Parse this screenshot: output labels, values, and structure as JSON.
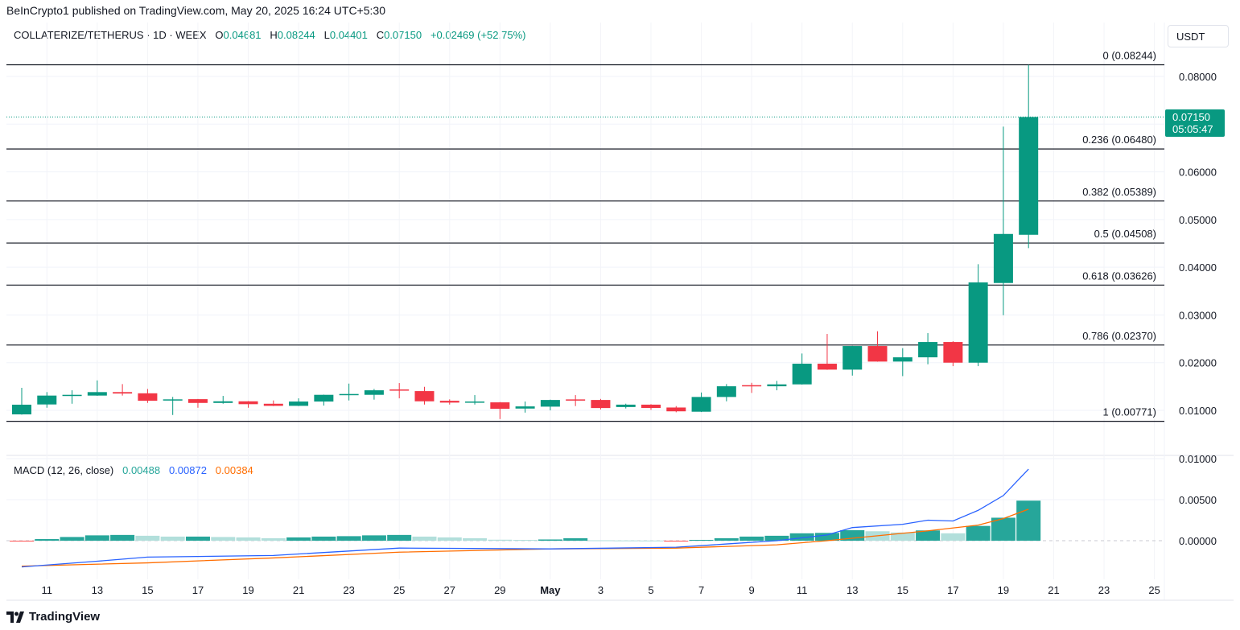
{
  "publisher": "BeInCrypto1 published on TradingView.com, May 20, 2025 16:24 UTC+5:30",
  "symbol": {
    "title": "COLLATERIZE/TETHERUS · 1D · WEEX",
    "open_label": "O",
    "open": "0.04681",
    "high_label": "H",
    "high": "0.08244",
    "low_label": "L",
    "low": "0.04401",
    "close_label": "C",
    "close": "0.07150",
    "change": "+0.02469 (+52.75%)"
  },
  "currency": "USDT",
  "last_price": {
    "price": "0.07150",
    "countdown": "05:05:47"
  },
  "macd_legend": {
    "title": "MACD (12, 26, close)",
    "histogram": "0.00488",
    "macd": "0.00872",
    "signal": "0.00384"
  },
  "footer": {
    "brand": "TradingView"
  },
  "colors": {
    "up": "#089981",
    "down": "#F23645",
    "macd": "#2962FF",
    "signal": "#FF6D00",
    "hist_up_strong": "#26A69A",
    "hist_up_weak": "#B2DFDB",
    "hist_down": "#FF5252"
  },
  "chart_data": [
    {
      "type": "candlestick",
      "ylim": [
        0.0,
        0.0855
      ],
      "grid": true,
      "price_ticks": [
        "0.08000",
        "0.06000",
        "0.05000",
        "0.04000",
        "0.03000",
        "0.02000",
        "0.01000"
      ],
      "x_ticks": [
        "11",
        "13",
        "15",
        "17",
        "19",
        "21",
        "23",
        "25",
        "27",
        "29",
        "May",
        "3",
        "5",
        "7",
        "9",
        "11",
        "13",
        "15",
        "17",
        "19",
        "21",
        "23",
        "25"
      ],
      "fibonacci": [
        {
          "label": "0 (0.08244)",
          "value": 0.08244
        },
        {
          "label": "0.236 (0.06480)",
          "value": 0.0648
        },
        {
          "label": "0.382 (0.05389)",
          "value": 0.05389
        },
        {
          "label": "0.5 (0.04508)",
          "value": 0.04508
        },
        {
          "label": "0.618 (0.03626)",
          "value": 0.03626
        },
        {
          "label": "0.786 (0.02370)",
          "value": 0.0237
        },
        {
          "label": "1 (0.00771)",
          "value": 0.00771
        }
      ],
      "candles": [
        {
          "date": "2025-04-10",
          "o": 0.00916,
          "h": 0.01473,
          "l": 0.0091,
          "c": 0.01119
        },
        {
          "date": "2025-04-11",
          "o": 0.01124,
          "h": 0.01383,
          "l": 0.01055,
          "c": 0.0131
        },
        {
          "date": "2025-04-12",
          "o": 0.0131,
          "h": 0.01421,
          "l": 0.01139,
          "c": 0.01326
        },
        {
          "date": "2025-04-13",
          "o": 0.0131,
          "h": 0.01628,
          "l": 0.01305,
          "c": 0.01383
        },
        {
          "date": "2025-04-14",
          "o": 0.01383,
          "h": 0.01551,
          "l": 0.0131,
          "c": 0.01353
        },
        {
          "date": "2025-04-15",
          "o": 0.01358,
          "h": 0.01449,
          "l": 0.01156,
          "c": 0.01201
        },
        {
          "date": "2025-04-16",
          "o": 0.01208,
          "h": 0.01282,
          "l": 0.00903,
          "c": 0.01231
        },
        {
          "date": "2025-04-17",
          "o": 0.01235,
          "h": 0.0124,
          "l": 0.01055,
          "c": 0.01156
        },
        {
          "date": "2025-04-18",
          "o": 0.01156,
          "h": 0.01303,
          "l": 0.01139,
          "c": 0.0119
        },
        {
          "date": "2025-04-19",
          "o": 0.0119,
          "h": 0.01195,
          "l": 0.01055,
          "c": 0.0113
        },
        {
          "date": "2025-04-20",
          "o": 0.01139,
          "h": 0.01208,
          "l": 0.0109,
          "c": 0.01095
        },
        {
          "date": "2025-04-21",
          "o": 0.01095,
          "h": 0.01252,
          "l": 0.0109,
          "c": 0.01185
        },
        {
          "date": "2025-04-22",
          "o": 0.01185,
          "h": 0.0133,
          "l": 0.011,
          "c": 0.01326
        },
        {
          "date": "2025-04-23",
          "o": 0.01326,
          "h": 0.01561,
          "l": 0.01208,
          "c": 0.01343
        },
        {
          "date": "2025-04-24",
          "o": 0.01326,
          "h": 0.01449,
          "l": 0.01225,
          "c": 0.01421
        },
        {
          "date": "2025-04-25",
          "o": 0.01438,
          "h": 0.01573,
          "l": 0.01252,
          "c": 0.01418
        },
        {
          "date": "2025-04-26",
          "o": 0.01404,
          "h": 0.01494,
          "l": 0.01122,
          "c": 0.0119
        },
        {
          "date": "2025-04-27",
          "o": 0.01201,
          "h": 0.01231,
          "l": 0.01122,
          "c": 0.01163
        },
        {
          "date": "2025-04-28",
          "o": 0.01163,
          "h": 0.0132,
          "l": 0.01122,
          "c": 0.01185
        },
        {
          "date": "2025-04-29",
          "o": 0.01168,
          "h": 0.01175,
          "l": 0.00818,
          "c": 0.01033
        },
        {
          "date": "2025-04-30",
          "o": 0.01038,
          "h": 0.01185,
          "l": 0.00953,
          "c": 0.01083
        },
        {
          "date": "2025-05-01",
          "o": 0.01078,
          "h": 0.01225,
          "l": 0.01,
          "c": 0.01218
        },
        {
          "date": "2025-05-02",
          "o": 0.0123,
          "h": 0.0132,
          "l": 0.0109,
          "c": 0.0121
        },
        {
          "date": "2025-05-03",
          "o": 0.01218,
          "h": 0.0124,
          "l": 0.0102,
          "c": 0.01049
        },
        {
          "date": "2025-05-04",
          "o": 0.0107,
          "h": 0.0114,
          "l": 0.0104,
          "c": 0.0112
        },
        {
          "date": "2025-05-05",
          "o": 0.0112,
          "h": 0.0113,
          "l": 0.0101,
          "c": 0.0105
        },
        {
          "date": "2025-05-06",
          "o": 0.0106,
          "h": 0.0109,
          "l": 0.0096,
          "c": 0.0098
        },
        {
          "date": "2025-05-07",
          "o": 0.00972,
          "h": 0.01375,
          "l": 0.00965,
          "c": 0.01281
        },
        {
          "date": "2025-05-08",
          "o": 0.01281,
          "h": 0.01551,
          "l": 0.0119,
          "c": 0.01505
        },
        {
          "date": "2025-05-09",
          "o": 0.01528,
          "h": 0.01578,
          "l": 0.01366,
          "c": 0.01515
        },
        {
          "date": "2025-05-10",
          "o": 0.01505,
          "h": 0.01618,
          "l": 0.01421,
          "c": 0.01545
        },
        {
          "date": "2025-05-11",
          "o": 0.01545,
          "h": 0.02192,
          "l": 0.0154,
          "c": 0.01978
        },
        {
          "date": "2025-05-12",
          "o": 0.01978,
          "h": 0.02602,
          "l": 0.0185,
          "c": 0.01854
        },
        {
          "date": "2025-05-13",
          "o": 0.01854,
          "h": 0.02352,
          "l": 0.01729,
          "c": 0.02349
        },
        {
          "date": "2025-05-14",
          "o": 0.02349,
          "h": 0.02658,
          "l": 0.0202,
          "c": 0.02023
        },
        {
          "date": "2025-05-15",
          "o": 0.02023,
          "h": 0.02303,
          "l": 0.01718,
          "c": 0.02112
        },
        {
          "date": "2025-05-16",
          "o": 0.02112,
          "h": 0.02619,
          "l": 0.01966,
          "c": 0.02433
        },
        {
          "date": "2025-05-17",
          "o": 0.02433,
          "h": 0.0245,
          "l": 0.01927,
          "c": 0.02
        },
        {
          "date": "2025-05-18",
          "o": 0.02,
          "h": 0.04064,
          "l": 0.01927,
          "c": 0.03682
        },
        {
          "date": "2025-05-19",
          "o": 0.0367,
          "h": 0.06949,
          "l": 0.02995,
          "c": 0.04698
        },
        {
          "date": "2025-05-20",
          "o": 0.04681,
          "h": 0.08244,
          "l": 0.04401,
          "c": 0.0715
        }
      ]
    },
    {
      "type": "macd",
      "title": "MACD (12, 26, close)",
      "ylim": [
        -0.0035,
        0.0102
      ],
      "y_ticks": [
        "0.01000",
        "0.00500",
        "0.00000"
      ],
      "histogram": [
        {
          "date": "2025-04-10",
          "value": -0.0001
        },
        {
          "date": "2025-04-11",
          "value": 0.0002
        },
        {
          "date": "2025-04-12",
          "value": 0.00045
        },
        {
          "date": "2025-04-13",
          "value": 0.00065
        },
        {
          "date": "2025-04-14",
          "value": 0.0007
        },
        {
          "date": "2025-04-15",
          "value": 0.0006
        },
        {
          "date": "2025-04-16",
          "value": 0.0005
        },
        {
          "date": "2025-04-17",
          "value": 0.0005
        },
        {
          "date": "2025-04-18",
          "value": 0.00045
        },
        {
          "date": "2025-04-19",
          "value": 0.0004
        },
        {
          "date": "2025-04-20",
          "value": 0.0003
        },
        {
          "date": "2025-04-21",
          "value": 0.0004
        },
        {
          "date": "2025-04-22",
          "value": 0.0005
        },
        {
          "date": "2025-04-23",
          "value": 0.00055
        },
        {
          "date": "2025-04-24",
          "value": 0.00065
        },
        {
          "date": "2025-04-25",
          "value": 0.0007
        },
        {
          "date": "2025-04-26",
          "value": 0.0005
        },
        {
          "date": "2025-04-27",
          "value": 0.0004
        },
        {
          "date": "2025-04-28",
          "value": 0.0003
        },
        {
          "date": "2025-04-29",
          "value": 0.00012
        },
        {
          "date": "2025-04-30",
          "value": 0.0001
        },
        {
          "date": "2025-05-01",
          "value": 0.00015
        },
        {
          "date": "2025-05-02",
          "value": 0.0003
        },
        {
          "date": "2025-05-03",
          "value": 5e-05
        },
        {
          "date": "2025-05-04",
          "value": 3e-05
        },
        {
          "date": "2025-05-05",
          "value": 2e-05
        },
        {
          "date": "2025-05-06",
          "value": -0.0001
        },
        {
          "date": "2025-05-07",
          "value": 0.0001
        },
        {
          "date": "2025-05-08",
          "value": 0.0003
        },
        {
          "date": "2025-05-09",
          "value": 0.0005
        },
        {
          "date": "2025-05-10",
          "value": 0.0006
        },
        {
          "date": "2025-05-11",
          "value": 0.0009
        },
        {
          "date": "2025-05-12",
          "value": 0.00095
        },
        {
          "date": "2025-05-13",
          "value": 0.00128
        },
        {
          "date": "2025-05-14",
          "value": 0.00115
        },
        {
          "date": "2025-05-15",
          "value": 0.001
        },
        {
          "date": "2025-05-16",
          "value": 0.00125
        },
        {
          "date": "2025-05-17",
          "value": 0.0009
        },
        {
          "date": "2025-05-18",
          "value": 0.0018
        },
        {
          "date": "2025-05-19",
          "value": 0.0028
        },
        {
          "date": "2025-05-20",
          "value": 0.00488
        }
      ],
      "macd_line": [
        {
          "date": "2025-04-10",
          "value": -0.0032
        },
        {
          "date": "2025-04-13",
          "value": -0.0025
        },
        {
          "date": "2025-04-15",
          "value": -0.002
        },
        {
          "date": "2025-04-20",
          "value": -0.0018
        },
        {
          "date": "2025-04-25",
          "value": -0.0009
        },
        {
          "date": "2025-05-01",
          "value": -0.001
        },
        {
          "date": "2025-05-06",
          "value": -0.0008
        },
        {
          "date": "2025-05-08",
          "value": -0.0004
        },
        {
          "date": "2025-05-10",
          "value": 0.0
        },
        {
          "date": "2025-05-12",
          "value": 0.0007
        },
        {
          "date": "2025-05-13",
          "value": 0.0016
        },
        {
          "date": "2025-05-15",
          "value": 0.002
        },
        {
          "date": "2025-05-16",
          "value": 0.0025
        },
        {
          "date": "2025-05-17",
          "value": 0.0024
        },
        {
          "date": "2025-05-18",
          "value": 0.0037
        },
        {
          "date": "2025-05-19",
          "value": 0.0055
        },
        {
          "date": "2025-05-20",
          "value": 0.00872
        }
      ],
      "signal_line": [
        {
          "date": "2025-04-10",
          "value": -0.0031
        },
        {
          "date": "2025-04-15",
          "value": -0.0027
        },
        {
          "date": "2025-04-20",
          "value": -0.0021
        },
        {
          "date": "2025-04-25",
          "value": -0.0014
        },
        {
          "date": "2025-05-01",
          "value": -0.001
        },
        {
          "date": "2025-05-06",
          "value": -0.0009
        },
        {
          "date": "2025-05-10",
          "value": -0.0005
        },
        {
          "date": "2025-05-12",
          "value": 0.0
        },
        {
          "date": "2025-05-14",
          "value": 0.0006
        },
        {
          "date": "2025-05-16",
          "value": 0.0012
        },
        {
          "date": "2025-05-18",
          "value": 0.0019
        },
        {
          "date": "2025-05-19",
          "value": 0.0027
        },
        {
          "date": "2025-05-20",
          "value": 0.00384
        }
      ]
    }
  ]
}
